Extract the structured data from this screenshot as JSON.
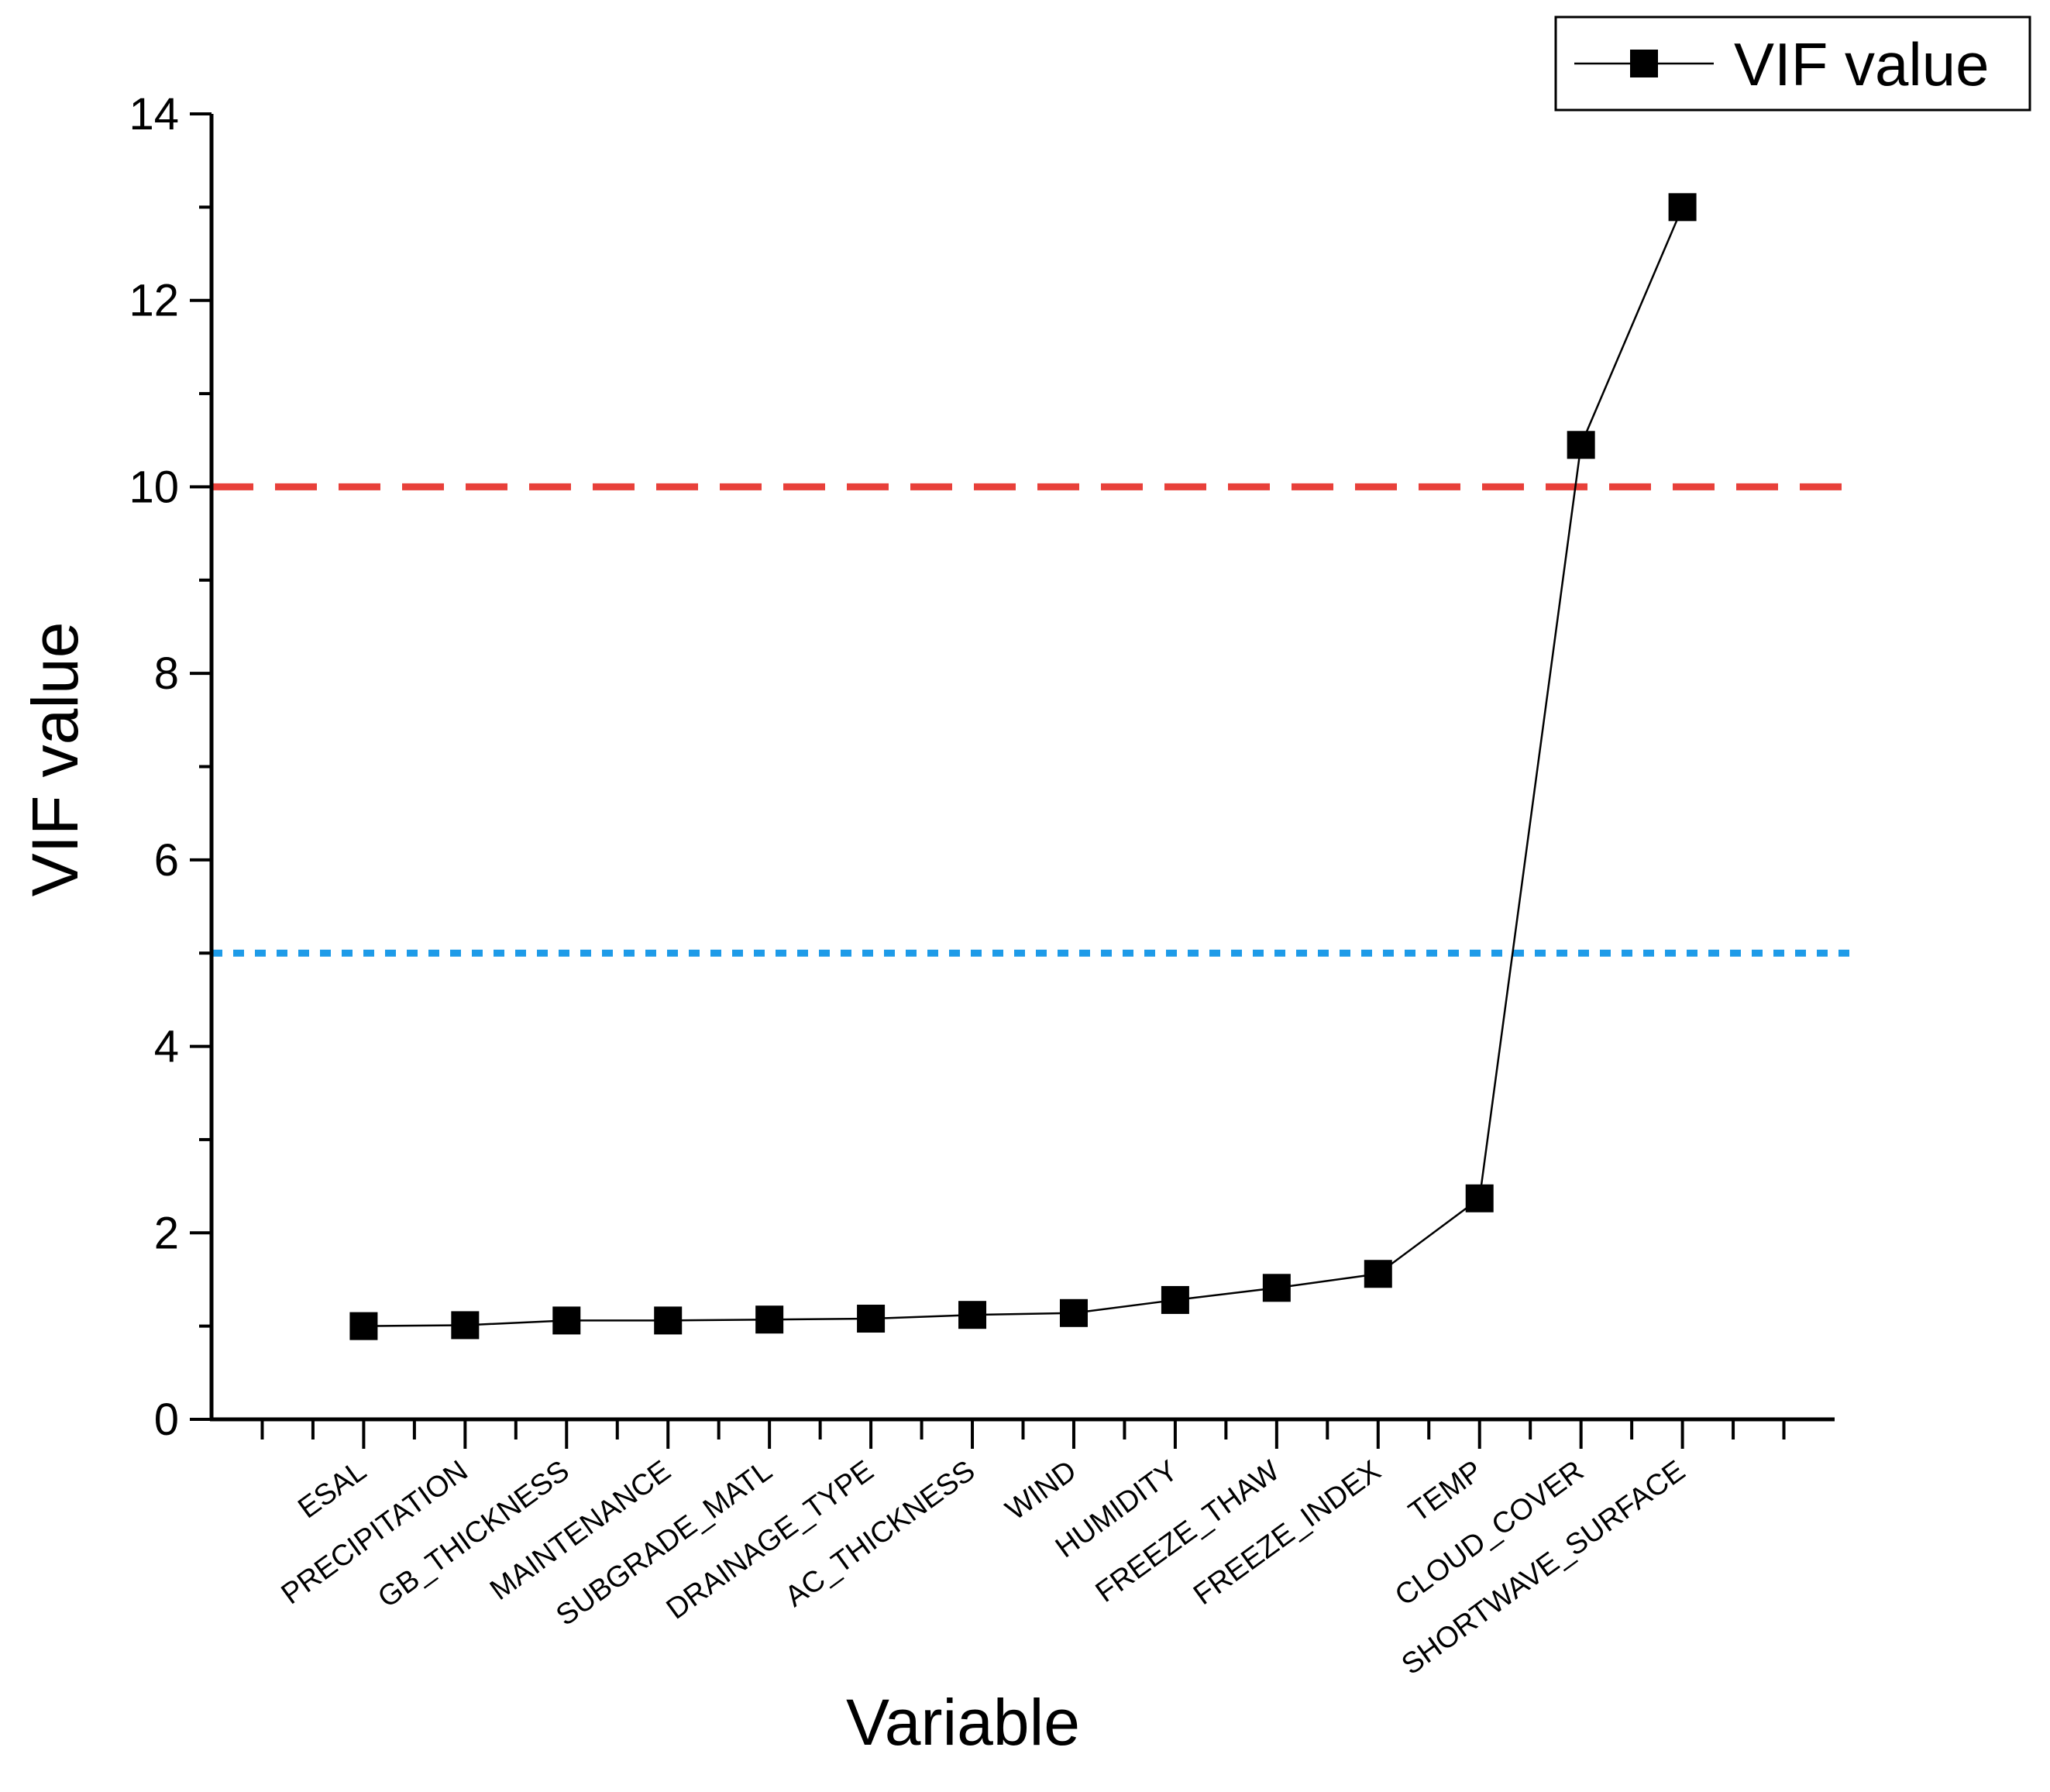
{
  "chart_data": {
    "type": "line",
    "title": "",
    "xlabel": "Variable",
    "ylabel": "VIF value",
    "ylim": [
      0,
      14
    ],
    "yticks": [
      "0",
      "2",
      "4",
      "6",
      "8",
      "10",
      "12",
      "14"
    ],
    "x_slots": 16,
    "categories": [
      "ESAL",
      "PRECIPITATION",
      "GB_THICKNESS",
      "MAINTENANCE",
      "SUBGRADE_MATL",
      "DRAINAGE_TYPE",
      "AC_THICKNESS",
      "WIND",
      "HUMIDITY",
      "FREEZE_THAW",
      "FREEZE_INDEX",
      "TEMP",
      "CLOUD_COVER",
      "SHORTWAVE_SURFACE"
    ],
    "series": [
      {
        "name": "VIF value",
        "marker": "square",
        "color": "#000000",
        "values": [
          1.0,
          1.01,
          1.06,
          1.06,
          1.07,
          1.08,
          1.12,
          1.14,
          1.28,
          1.41,
          1.56,
          2.37,
          10.45,
          13.0
        ]
      }
    ],
    "reference_lines": [
      {
        "value": 10,
        "color": "#e8403a",
        "style": "dashed"
      },
      {
        "value": 5,
        "color": "#1e9be8",
        "style": "dotted"
      }
    ],
    "legend": {
      "position": "top-right",
      "label": "VIF value"
    },
    "grid": false
  }
}
